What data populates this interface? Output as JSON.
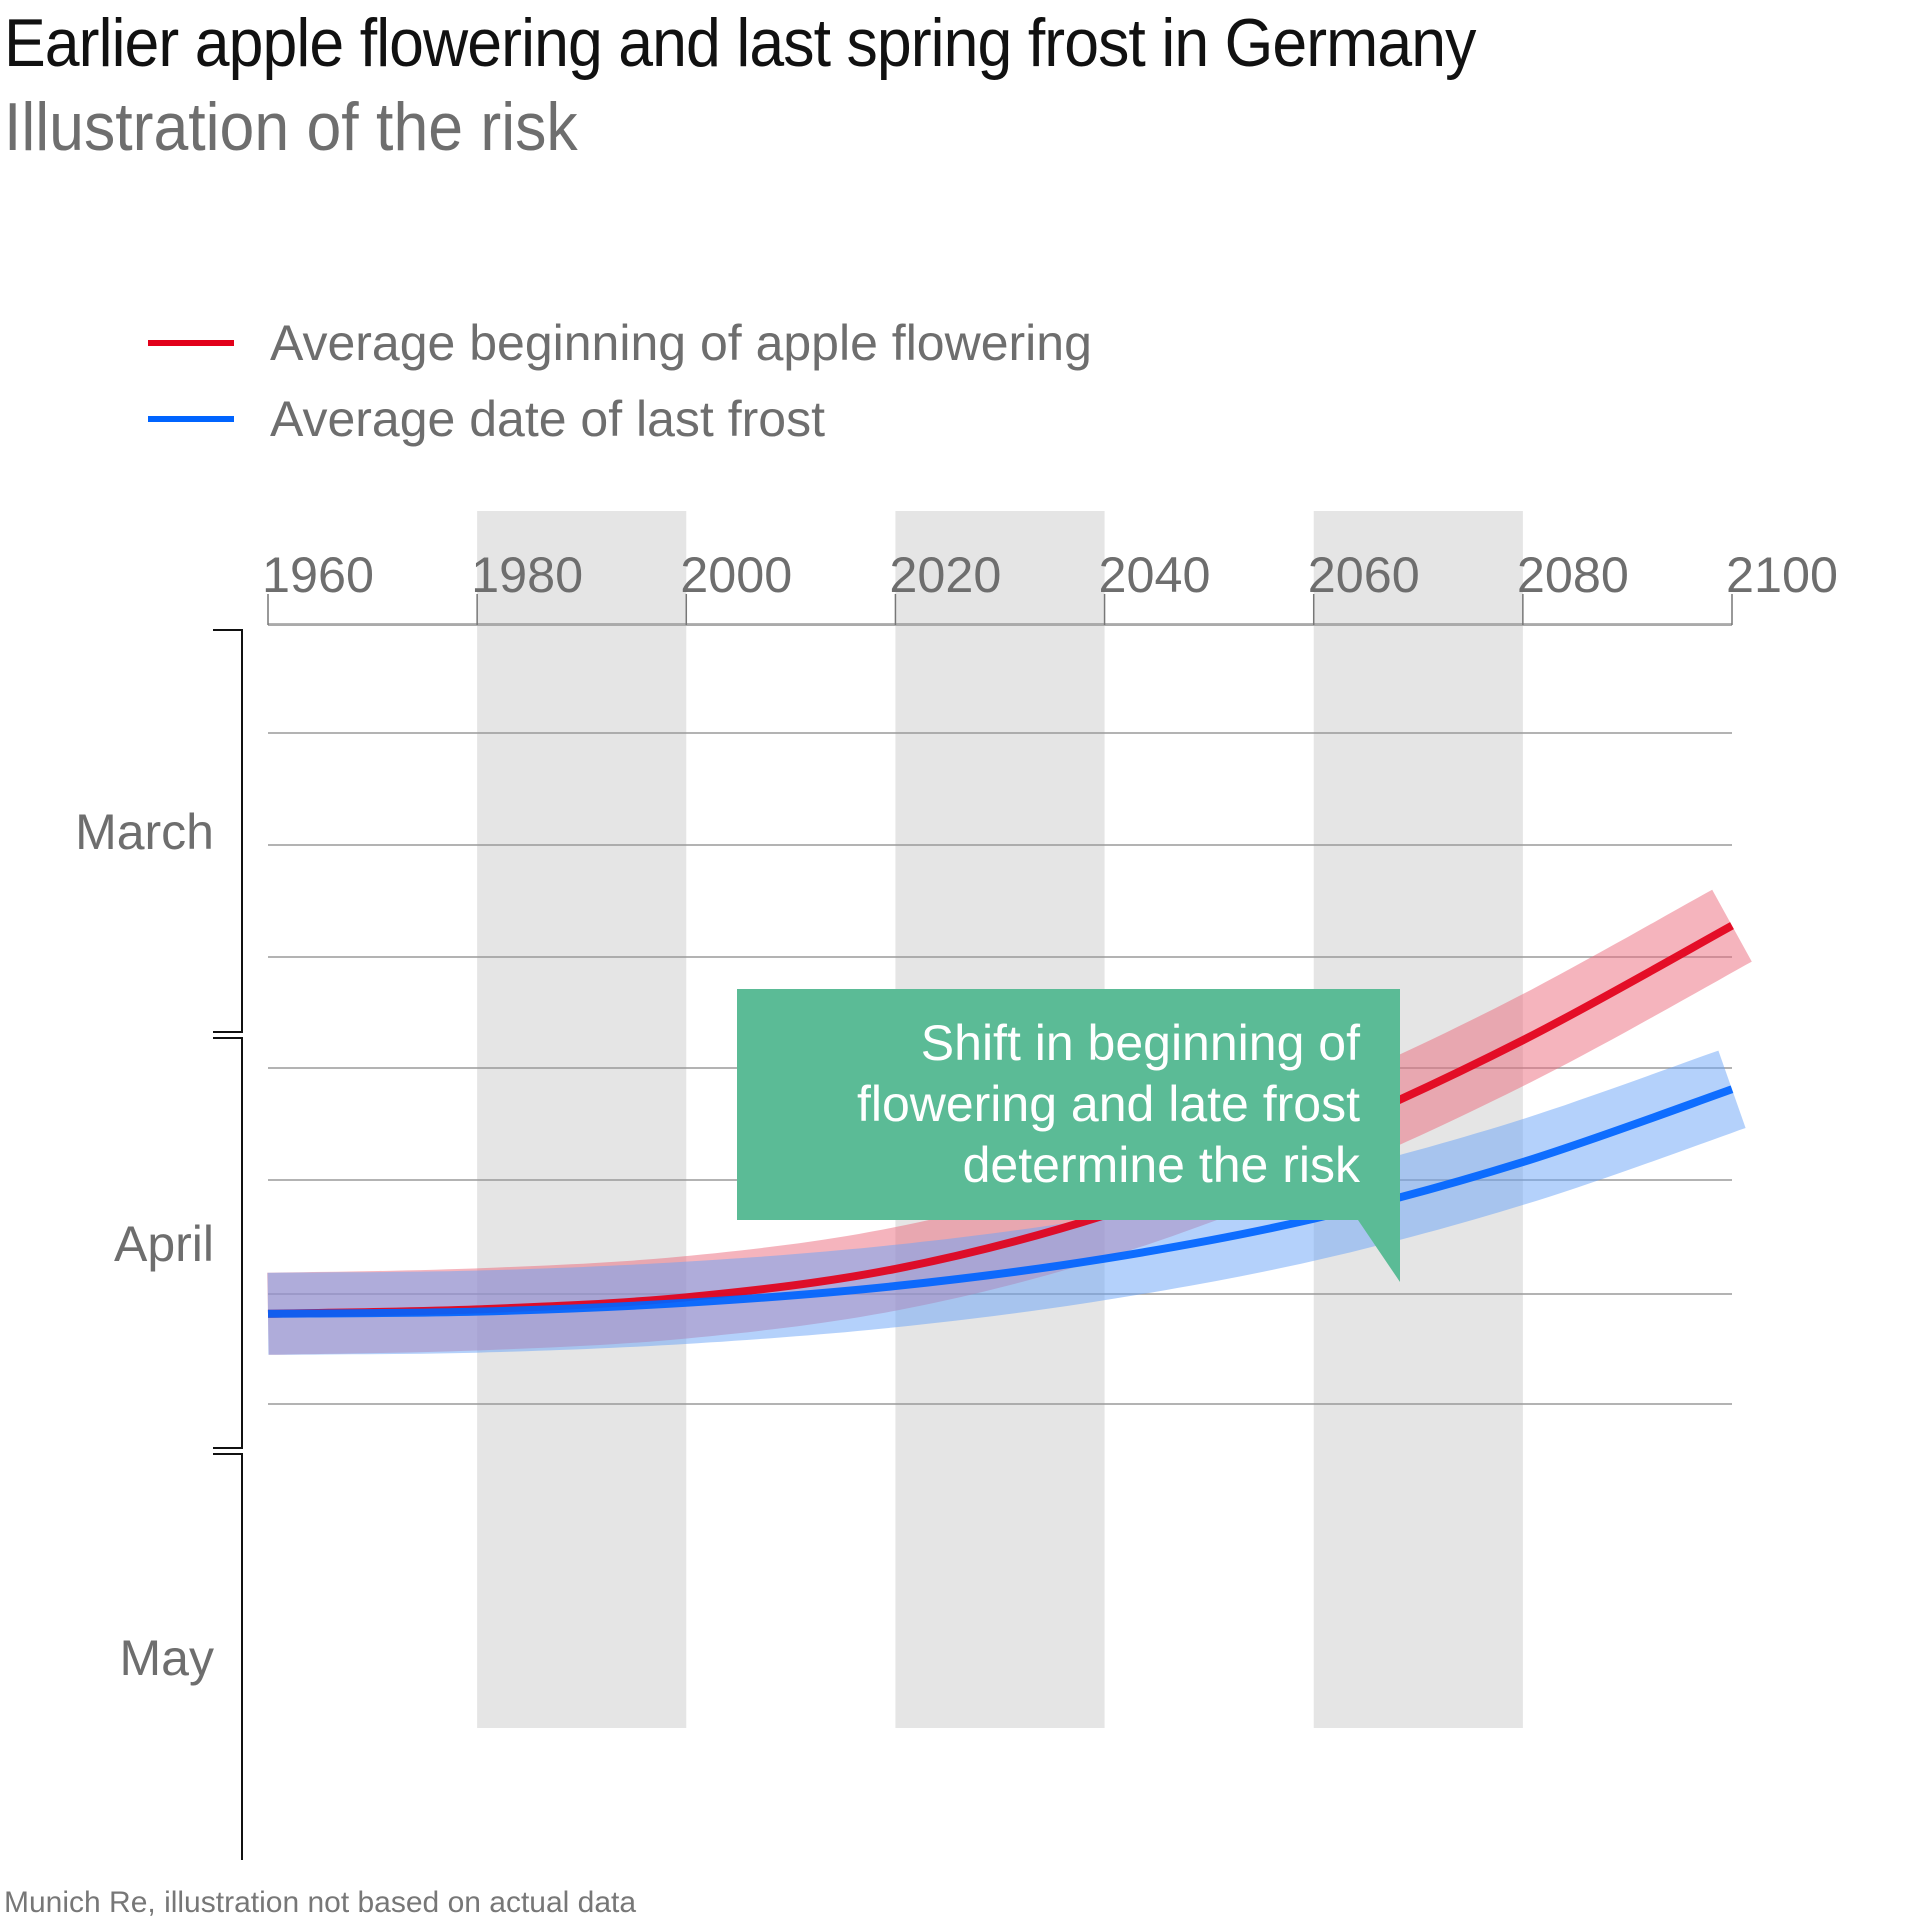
{
  "header": {
    "title": "Earlier apple flowering and last spring frost in Germany",
    "subtitle": "Illustration of the risk"
  },
  "source": "Munich Re, illustration not based on actual data",
  "chart_data": {
    "type": "line",
    "title": "Earlier apple flowering and last spring frost in Germany",
    "subtitle": "Illustration of the risk",
    "xlabel": "",
    "ylabel": "",
    "x_ticks": [
      "1960",
      "1980",
      "2000",
      "2020",
      "2040",
      "2060",
      "2080",
      "2100"
    ],
    "xlim": [
      1960,
      2100
    ],
    "x_axis_position": "top",
    "y_axis_note": "Time of year, earlier at top; gridline units (0 = top axis, 9 = bottom)",
    "ylim": [
      0,
      9
    ],
    "y_gridlines": [
      1,
      2,
      3,
      4,
      5,
      6,
      7,
      8
    ],
    "y_month_groups": [
      {
        "label": "March",
        "from": 0,
        "to": 2.95
      },
      {
        "label": "April",
        "from": 3.0,
        "to": 5.95
      },
      {
        "label": "May",
        "from": 6.0,
        "to": 9.0
      }
    ],
    "shaded_year_bands": [
      [
        1980,
        2000
      ],
      [
        2020,
        2040
      ],
      [
        2060,
        2080
      ]
    ],
    "grid": true,
    "legend_position": "top-left",
    "series": [
      {
        "name": "Average beginning of apple flowering",
        "color": "#e2001a",
        "band_color": "#eb6a7b",
        "x": [
          1960,
          1980,
          2000,
          2020,
          2040,
          2060,
          2080,
          2100
        ],
        "y": [
          7.18,
          7.14,
          7.03,
          6.78,
          6.31,
          5.62,
          4.75,
          3.72
        ],
        "band_halfwidth": 0.36
      },
      {
        "name": "Average date of last frost",
        "color": "#0064ff",
        "band_color": "#6aa3f7",
        "x": [
          1960,
          1980,
          2000,
          2020,
          2040,
          2060,
          2080,
          2100
        ],
        "y": [
          7.18,
          7.16,
          7.08,
          6.93,
          6.69,
          6.34,
          5.84,
          5.19
        ],
        "band_halfwidth": 0.36
      }
    ],
    "annotation": {
      "lines": [
        "Shift in beginning of",
        "flowering and late frost",
        "determine the risk"
      ],
      "color": "#5bbb96",
      "points_to_year": 2060
    }
  }
}
